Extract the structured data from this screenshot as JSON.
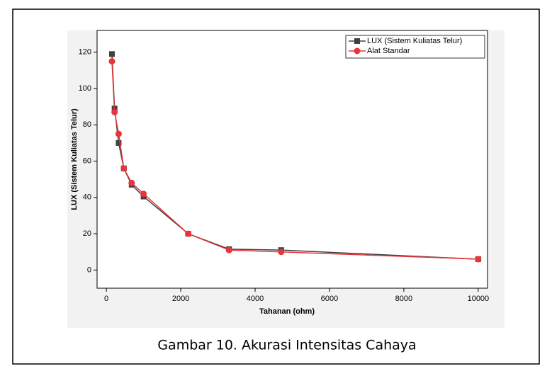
{
  "chart_data": {
    "type": "line",
    "x_label": "Tahanan (ohm)",
    "y_label": "LUX (Sistem Kuliatas Telur)",
    "x": [
      150,
      220,
      330,
      470,
      680,
      1000,
      2200,
      3300,
      4700,
      10000
    ],
    "series": [
      {
        "name": "LUX (Sistem Kuliatas Telur)",
        "color": "#404040",
        "marker": "square",
        "values": [
          119,
          89,
          70,
          56,
          47,
          40.5,
          20,
          11.5,
          11,
          6
        ]
      },
      {
        "name": "Alat Standar",
        "color": "#e8343a",
        "marker": "circle",
        "values": [
          115,
          87,
          75,
          56,
          48,
          42,
          20,
          11,
          10,
          6
        ]
      }
    ],
    "xlim": [
      -250,
      10250
    ],
    "xticks": [
      0,
      2000,
      4000,
      6000,
      8000,
      10000
    ],
    "ylim": [
      -10,
      132
    ],
    "yticks": [
      0,
      20,
      40,
      60,
      80,
      100,
      120
    ],
    "legend": "top-right"
  },
  "caption": "Gambar 10. Akurasi Intensitas Cahaya"
}
